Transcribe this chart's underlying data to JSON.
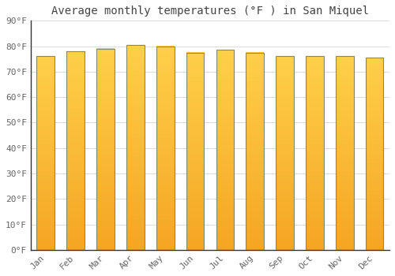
{
  "title": "Average monthly temperatures (°F ) in San Miquel",
  "months": [
    "Jan",
    "Feb",
    "Mar",
    "Apr",
    "May",
    "Jun",
    "Jul",
    "Aug",
    "Sep",
    "Oct",
    "Nov",
    "Dec"
  ],
  "values": [
    76,
    78,
    79,
    80.5,
    80,
    77.5,
    78.5,
    77.5,
    76,
    76,
    76,
    75.5
  ],
  "bar_color_top": "#FFD04A",
  "bar_color_bottom": "#F5A623",
  "bar_edge_color": "#888866",
  "background_color": "#ffffff",
  "ylim": [
    0,
    90
  ],
  "ytick_step": 10,
  "grid_color": "#cccccc",
  "title_fontsize": 10,
  "tick_fontsize": 8,
  "title_font": "monospace",
  "tick_font": "monospace",
  "bar_width": 0.6,
  "gradient_steps": 100
}
